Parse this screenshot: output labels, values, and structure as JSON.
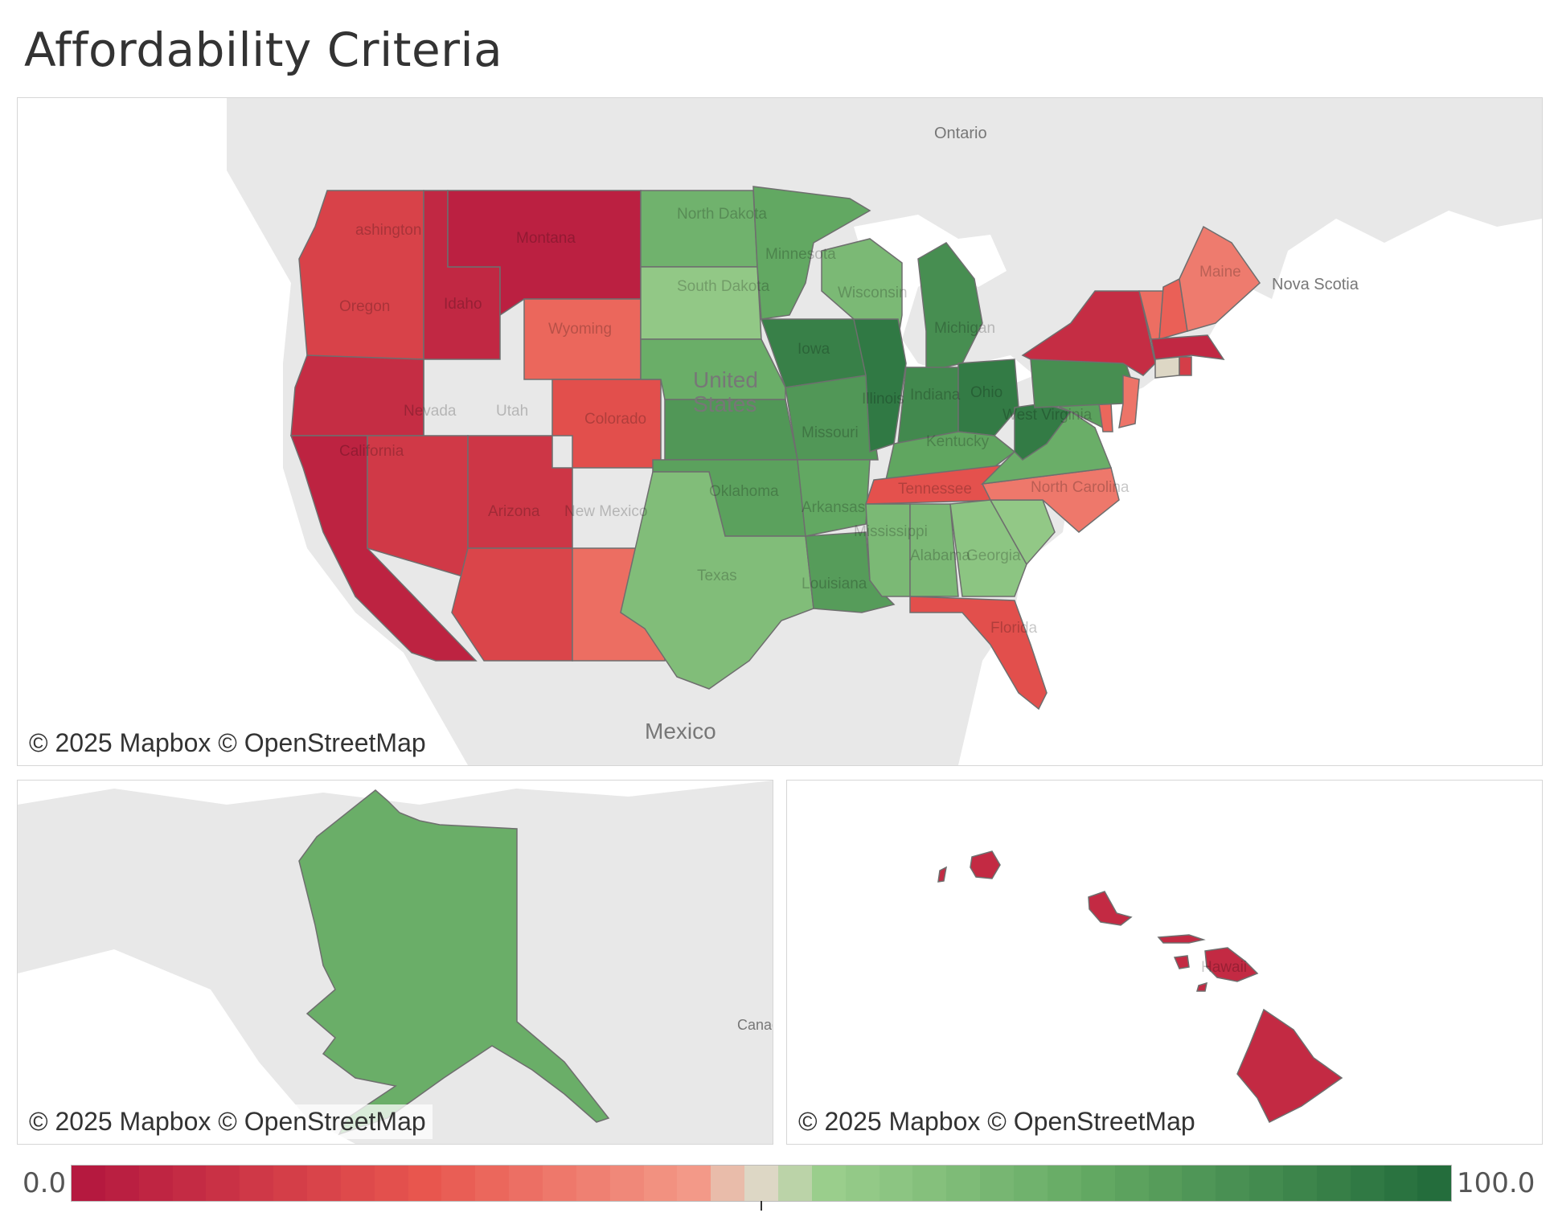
{
  "title": "Affordability Criteria",
  "attribution": "© 2025 Mapbox © OpenStreetMap",
  "basemap_labels": {
    "ontario": "Ontario",
    "nova_scotia": "Nova Scotia",
    "united_states_1": "United",
    "united_states_2": "States",
    "mexico": "Mexico",
    "canada": "Canad"
  },
  "colors": {
    "low": "#b5193f",
    "mid": "#ddd7c5",
    "high": "#246d3c",
    "land": "#e8e8e8",
    "water": "#ffffff"
  },
  "legend": {
    "min_label": "0.0",
    "max_label": "100.0",
    "min": 0,
    "max": 100
  },
  "states": [
    {
      "name": "Washington",
      "label": "ashington",
      "score": 17
    },
    {
      "name": "Oregon",
      "label": "Oregon",
      "score": 8
    },
    {
      "name": "California",
      "label": "California",
      "score": 4
    },
    {
      "name": "Idaho",
      "label": "Idaho",
      "score": 6
    },
    {
      "name": "Nevada",
      "label": "Nevada",
      "score": 13
    },
    {
      "name": "Montana",
      "label": "Montana",
      "score": 3
    },
    {
      "name": "Wyoming",
      "label": "Wyoming",
      "score": 30
    },
    {
      "name": "Utah",
      "label": "Utah",
      "score": 12
    },
    {
      "name": "Colorado",
      "label": "Colorado",
      "score": 22
    },
    {
      "name": "Arizona",
      "label": "Arizona",
      "score": 18
    },
    {
      "name": "New Mexico",
      "label": "New Mexico",
      "score": 32
    },
    {
      "name": "North Dakota",
      "label": "North Dakota",
      "score": 70
    },
    {
      "name": "South Dakota",
      "label": "South Dakota",
      "score": 58
    },
    {
      "name": "Nebraska",
      "label": "",
      "score": 72
    },
    {
      "name": "Kansas",
      "label": "",
      "score": 82
    },
    {
      "name": "Oklahoma",
      "label": "Oklahoma",
      "score": 78
    },
    {
      "name": "Texas",
      "label": "Texas",
      "score": 64
    },
    {
      "name": "Minnesota",
      "label": "Minnesota",
      "score": 75
    },
    {
      "name": "Iowa",
      "label": "Iowa",
      "score": 92
    },
    {
      "name": "Missouri",
      "label": "Missouri",
      "score": 82
    },
    {
      "name": "Arkansas",
      "label": "Arkansas",
      "score": 75
    },
    {
      "name": "Louisiana",
      "label": "Louisiana",
      "score": 80
    },
    {
      "name": "Wisconsin",
      "label": "Wisconsin",
      "score": 66
    },
    {
      "name": "Illinois",
      "label": "Illinois",
      "score": 95
    },
    {
      "name": "Michigan",
      "label": "Michigan",
      "score": 86
    },
    {
      "name": "Indiana",
      "label": "Indiana",
      "score": 88
    },
    {
      "name": "Ohio",
      "label": "Ohio",
      "score": 94
    },
    {
      "name": "Kentucky",
      "label": "Kentucky",
      "score": 76
    },
    {
      "name": "Tennessee",
      "label": "Tennessee",
      "score": 23
    },
    {
      "name": "Mississippi",
      "label": "Mississippi",
      "score": 66
    },
    {
      "name": "Alabama",
      "label": "Alabama",
      "score": 66
    },
    {
      "name": "Georgia",
      "label": "Georgia",
      "score": 60
    },
    {
      "name": "Florida",
      "label": "Florida",
      "score": 22
    },
    {
      "name": "South Carolina",
      "label": "",
      "score": 58
    },
    {
      "name": "North Carolina",
      "label": "North Carolina",
      "score": 35
    },
    {
      "name": "Virginia",
      "label": "",
      "score": 72
    },
    {
      "name": "West Virginia",
      "label": "West Virginia",
      "score": 94
    },
    {
      "name": "Pennsylvania",
      "label": "",
      "score": 86
    },
    {
      "name": "New York",
      "label": "",
      "score": 8
    },
    {
      "name": "Maine",
      "label": "Maine",
      "score": 36
    },
    {
      "name": "Vermont",
      "label": "",
      "score": 32
    },
    {
      "name": "New Hampshire",
      "label": "",
      "score": 28
    },
    {
      "name": "Massachusetts",
      "label": "",
      "score": 6
    },
    {
      "name": "Connecticut",
      "label": "",
      "score": 50
    },
    {
      "name": "Rhode Island",
      "label": "",
      "score": 15
    },
    {
      "name": "New Jersey",
      "label": "",
      "score": 34
    },
    {
      "name": "Delaware",
      "label": "",
      "score": 30
    },
    {
      "name": "Maryland",
      "label": "",
      "score": 78
    },
    {
      "name": "Alaska",
      "label": "",
      "score": 72
    },
    {
      "name": "Hawaii",
      "label": "Hawaii",
      "score": 7
    }
  ]
}
